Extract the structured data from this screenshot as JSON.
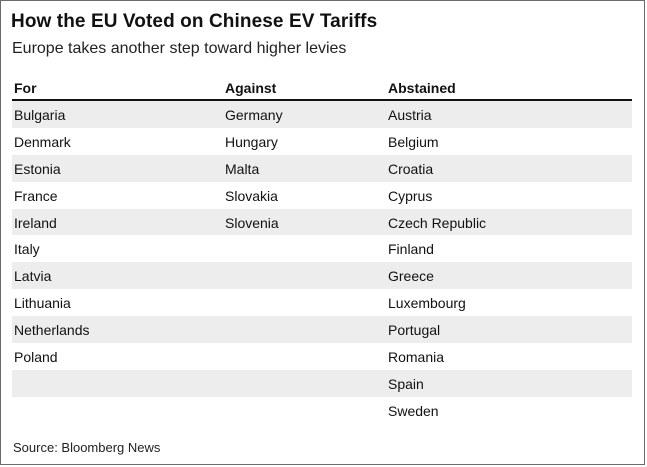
{
  "title": "How the EU Voted on Chinese EV Tariffs",
  "subtitle": "Europe takes another step toward higher levies",
  "table": {
    "columns": [
      "For",
      "Against",
      "Abstained"
    ],
    "rows": [
      [
        "Bulgaria",
        "Germany",
        "Austria"
      ],
      [
        "Denmark",
        "Hungary",
        "Belgium"
      ],
      [
        "Estonia",
        "Malta",
        "Croatia"
      ],
      [
        "France",
        "Slovakia",
        "Cyprus"
      ],
      [
        "Ireland",
        "Slovenia",
        "Czech Republic"
      ],
      [
        "Italy",
        "",
        "Finland"
      ],
      [
        "Latvia",
        "",
        "Greece"
      ],
      [
        "Lithuania",
        "",
        "Luxembourg"
      ],
      [
        "Netherlands",
        "",
        "Portugal"
      ],
      [
        "Poland",
        "",
        "Romania"
      ],
      [
        "",
        "",
        "Spain"
      ],
      [
        "",
        "",
        "Sweden"
      ]
    ]
  },
  "source": "Source: Bloomberg News",
  "colors": {
    "row_shade": "#ededed",
    "rule": "#111111",
    "border": "#6b6b6b"
  }
}
